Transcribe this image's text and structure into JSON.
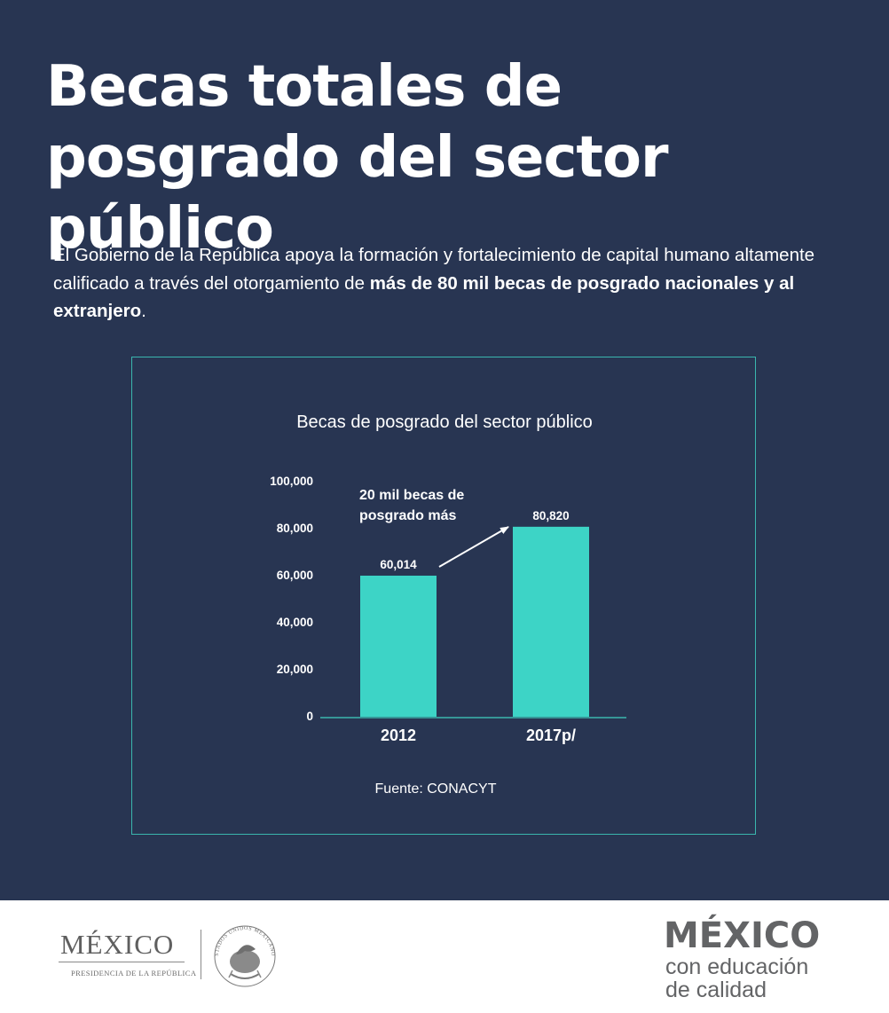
{
  "header": {
    "title": "Becas totales de posgrado del sector público"
  },
  "intro": {
    "text_plain": "El Gobierno de la República apoya la formación y fortalecimiento de capital humano altamente calificado a través del otorgamiento de ",
    "text_bold": "más de 80 mil becas de posgrado nacionales y al extranjero",
    "text_end": "."
  },
  "chart_data": {
    "type": "bar",
    "title": "Becas de posgrado del sector público",
    "categories": [
      "2012",
      "2017p/"
    ],
    "values": [
      60014,
      80820
    ],
    "value_labels": [
      "60,014",
      "80,820"
    ],
    "ylim": [
      0,
      100000
    ],
    "yticks": [
      0,
      20000,
      40000,
      60000,
      80000,
      100000
    ],
    "ytick_labels": [
      "0",
      "20,000",
      "40,000",
      "60,000",
      "80,000",
      "100,000"
    ],
    "annotation": [
      "20 mil becas de",
      "posgrado más"
    ],
    "source": "Fuente: CONACYT",
    "grid": false,
    "legend": "none",
    "bar_color": "#3dd4c6",
    "axis_color": "#3ab6ae"
  },
  "footer": {
    "logo_word": "MÉXICO",
    "logo_subtitle": "PRESIDENCIA DE LA REPÚBLICA",
    "seal_text": "ESTADOS UNIDOS MEXICANOS",
    "brand_main": "MÉXICO",
    "brand_line1": "con educación",
    "brand_line2": "de calidad"
  },
  "colors": {
    "background": "#283552",
    "footer_background": "#ffffff",
    "brand_gray": "#636466"
  }
}
